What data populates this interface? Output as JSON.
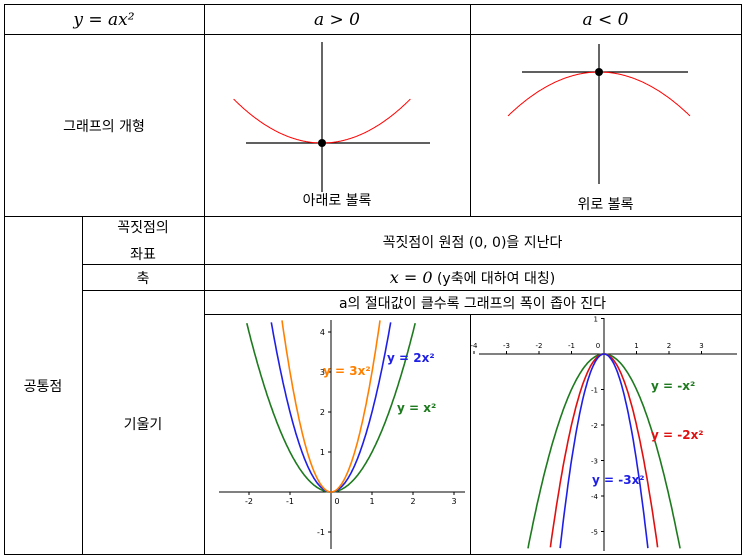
{
  "header": {
    "col1": "y = ax²",
    "col2": "a > 0",
    "col3": "a < 0"
  },
  "row_shape": {
    "label": "그래프의 개형",
    "left_caption": "아래로 볼록",
    "right_caption": "위로 볼록"
  },
  "common": {
    "label": "공통점",
    "vertex_label_line1": "꼭짓점의",
    "vertex_label_line2": "좌표",
    "vertex_text": "꼭짓점이 원점 (0, 0)을 지난다",
    "axis_label": "축",
    "axis_math": "x = 0",
    "axis_text": "(y축에 대하여 대칭)",
    "slope_label": "기울기",
    "slope_text": "a의 절대값이 클수록 그래프의 폭이 좁아 진다"
  },
  "graph_left": {
    "x_ticks": [
      "-2",
      "-1",
      "0",
      "1",
      "2",
      "3"
    ],
    "y_ticks": [
      "-1",
      "1",
      "2",
      "3",
      "4"
    ],
    "labels": {
      "a3": "y = 3x²",
      "a2": "y = 2x²",
      "a1": "y = x²"
    },
    "colors": {
      "a3": "#ff8000",
      "a2": "#1f1fe6",
      "a1": "#1e7a1e"
    }
  },
  "graph_right": {
    "x_ticks": [
      "-4",
      "-3",
      "-2",
      "-1",
      "0",
      "1",
      "2",
      "3"
    ],
    "y_ticks": [
      "1",
      "-1",
      "-2",
      "-3",
      "-4",
      "-5"
    ],
    "labels": {
      "a1": "y = -x²",
      "a2": "y = -2x²",
      "a3": "y = -3x²"
    },
    "colors": {
      "a1": "#1e7a1e",
      "a2": "#e01010",
      "a3": "#1f1fe6"
    }
  },
  "colors": {
    "parabola": "#ff0000"
  }
}
